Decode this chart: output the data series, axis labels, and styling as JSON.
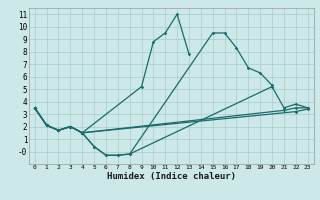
{
  "xlabel": "Humidex (Indice chaleur)",
  "bg_color": "#cce8e8",
  "grid_color": "#aacccc",
  "line_color": "#1a6b6b",
  "xlim": [
    -0.5,
    23.5
  ],
  "ylim": [
    -1.0,
    11.5
  ],
  "xticks": [
    0,
    1,
    2,
    3,
    4,
    5,
    6,
    7,
    8,
    9,
    10,
    11,
    12,
    13,
    14,
    15,
    16,
    17,
    18,
    19,
    20,
    21,
    22,
    23
  ],
  "yticks": [
    0,
    1,
    2,
    3,
    4,
    5,
    6,
    7,
    8,
    9,
    10,
    11
  ],
  "ytick_labels": [
    "-0",
    "1",
    "2",
    "3",
    "4",
    "5",
    "6",
    "7",
    "8",
    "9",
    "10",
    "11"
  ],
  "line1_x": [
    0,
    1,
    2,
    3,
    4,
    9,
    10,
    11,
    12,
    13
  ],
  "line1_y": [
    3.5,
    2.1,
    1.7,
    2.0,
    1.5,
    5.2,
    8.8,
    9.5,
    11.0,
    7.8
  ],
  "line2_x": [
    0,
    1,
    2,
    3,
    4,
    5,
    6,
    7,
    8,
    15,
    16,
    17,
    18,
    19,
    20
  ],
  "line2_y": [
    3.5,
    2.1,
    1.7,
    2.0,
    1.5,
    0.4,
    -0.3,
    -0.3,
    -0.2,
    9.5,
    9.5,
    8.3,
    6.7,
    6.3,
    5.3
  ],
  "line3_x": [
    0,
    1,
    2,
    3,
    4,
    5,
    6,
    7,
    8,
    20,
    21,
    22,
    23
  ],
  "line3_y": [
    3.5,
    2.1,
    1.7,
    2.0,
    1.5,
    0.4,
    -0.3,
    -0.3,
    -0.2,
    5.2,
    3.5,
    3.8,
    3.5
  ],
  "line4_x": [
    0,
    1,
    2,
    3,
    4,
    21,
    22,
    23
  ],
  "line4_y": [
    3.5,
    2.1,
    1.7,
    2.0,
    1.5,
    3.3,
    3.5,
    3.5
  ],
  "line5_x": [
    0,
    1,
    2,
    3,
    4,
    22,
    23
  ],
  "line5_y": [
    3.5,
    2.1,
    1.7,
    2.0,
    1.5,
    3.2,
    3.4
  ]
}
